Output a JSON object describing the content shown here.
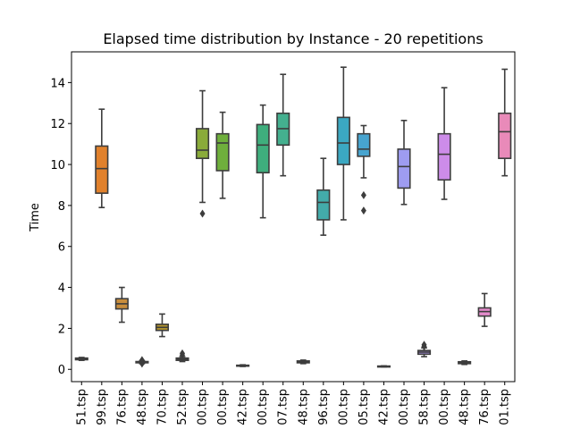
{
  "chart_data": {
    "type": "box",
    "title": "Elapsed time distribution by Instance - 20 repetitions",
    "xlabel": "",
    "ylabel": "Time",
    "ylim": [
      -0.6,
      15.5
    ],
    "yticks": [
      0,
      2,
      4,
      6,
      8,
      10,
      12,
      14
    ],
    "grid": false,
    "categories": [
      "51.tsp",
      "99.tsp",
      "76.tsp",
      "48.tsp",
      "70.tsp",
      "52.tsp",
      "00.tsp",
      "00.tsp",
      "42.tsp",
      "00.tsp",
      "07.tsp",
      "48.tsp",
      "96.tsp",
      "00.tsp",
      "05.tsp",
      "42.tsp",
      "00.tsp",
      "58.tsp",
      "00.tsp",
      "48.tsp",
      "76.tsp",
      "01.tsp"
    ],
    "boxes": [
      {
        "whislo": 0.44,
        "q1": 0.47,
        "med": 0.51,
        "q3": 0.55,
        "whishi": 0.58,
        "fliers": [],
        "color": "#3b6ba5"
      },
      {
        "whislo": 7.9,
        "q1": 8.6,
        "med": 9.8,
        "q3": 10.9,
        "whishi": 12.7,
        "fliers": [],
        "color": "#e1812c"
      },
      {
        "whislo": 2.3,
        "q1": 2.95,
        "med": 3.2,
        "q3": 3.45,
        "whishi": 4.0,
        "fliers": [],
        "color": "#c88d3c"
      },
      {
        "whislo": 0.28,
        "q1": 0.32,
        "med": 0.35,
        "q3": 0.38,
        "whishi": 0.42,
        "fliers": [
          0.28,
          0.45
        ],
        "color": "#d9a036"
      },
      {
        "whislo": 1.6,
        "q1": 1.9,
        "med": 2.05,
        "q3": 2.2,
        "whishi": 2.7,
        "fliers": [],
        "color": "#b4962e"
      },
      {
        "whislo": 0.38,
        "q1": 0.44,
        "med": 0.5,
        "q3": 0.55,
        "whishi": 0.62,
        "fliers": [
          0.7,
          0.78
        ],
        "color": "#a2a431"
      },
      {
        "whislo": 8.15,
        "q1": 10.3,
        "med": 10.7,
        "q3": 11.75,
        "whishi": 13.6,
        "fliers": [
          7.6
        ],
        "color": "#8aab3a"
      },
      {
        "whislo": 8.35,
        "q1": 9.7,
        "med": 11.05,
        "q3": 11.5,
        "whishi": 12.55,
        "fliers": [],
        "color": "#6faf3c"
      },
      {
        "whislo": 0.14,
        "q1": 0.16,
        "med": 0.18,
        "q3": 0.2,
        "whishi": 0.22,
        "fliers": [],
        "color": "#48b156"
      },
      {
        "whislo": 7.4,
        "q1": 9.6,
        "med": 10.95,
        "q3": 11.95,
        "whishi": 12.9,
        "fliers": [],
        "color": "#3fae7d"
      },
      {
        "whislo": 9.45,
        "q1": 10.95,
        "med": 11.75,
        "q3": 12.5,
        "whishi": 14.4,
        "fliers": [],
        "color": "#44b08f"
      },
      {
        "whislo": 0.28,
        "q1": 0.32,
        "med": 0.37,
        "q3": 0.41,
        "whishi": 0.45,
        "fliers": [],
        "color": "#42ae9e"
      },
      {
        "whislo": 6.55,
        "q1": 7.3,
        "med": 8.15,
        "q3": 8.75,
        "whishi": 10.3,
        "fliers": [],
        "color": "#43abaa"
      },
      {
        "whislo": 7.3,
        "q1": 10.0,
        "med": 11.05,
        "q3": 12.3,
        "whishi": 14.75,
        "fliers": [],
        "color": "#3ba8c2"
      },
      {
        "whislo": 9.35,
        "q1": 10.4,
        "med": 10.75,
        "q3": 11.5,
        "whishi": 11.9,
        "fliers": [
          8.5,
          7.75
        ],
        "color": "#47a4cf"
      },
      {
        "whislo": 0.12,
        "q1": 0.14,
        "med": 0.15,
        "q3": 0.16,
        "whishi": 0.17,
        "fliers": [],
        "color": "#6f9ee0"
      },
      {
        "whislo": 8.05,
        "q1": 8.85,
        "med": 9.9,
        "q3": 10.75,
        "whishi": 12.15,
        "fliers": [],
        "color": "#9e9cf0"
      },
      {
        "whislo": 0.62,
        "q1": 0.74,
        "med": 0.84,
        "q3": 0.92,
        "whishi": 1.05,
        "fliers": [
          1.12,
          1.2
        ],
        "color": "#b096ee"
      },
      {
        "whislo": 8.3,
        "q1": 9.25,
        "med": 10.5,
        "q3": 11.5,
        "whishi": 13.75,
        "fliers": [],
        "color": "#cd8ce9"
      },
      {
        "whislo": 0.24,
        "q1": 0.28,
        "med": 0.33,
        "q3": 0.37,
        "whishi": 0.41,
        "fliers": [],
        "color": "#de88da"
      },
      {
        "whislo": 2.1,
        "q1": 2.6,
        "med": 2.82,
        "q3": 3.0,
        "whishi": 3.7,
        "fliers": [],
        "color": "#e48bcc"
      },
      {
        "whislo": 9.45,
        "q1": 10.3,
        "med": 11.6,
        "q3": 12.5,
        "whishi": 14.65,
        "fliers": [],
        "color": "#e98ab9"
      }
    ]
  }
}
